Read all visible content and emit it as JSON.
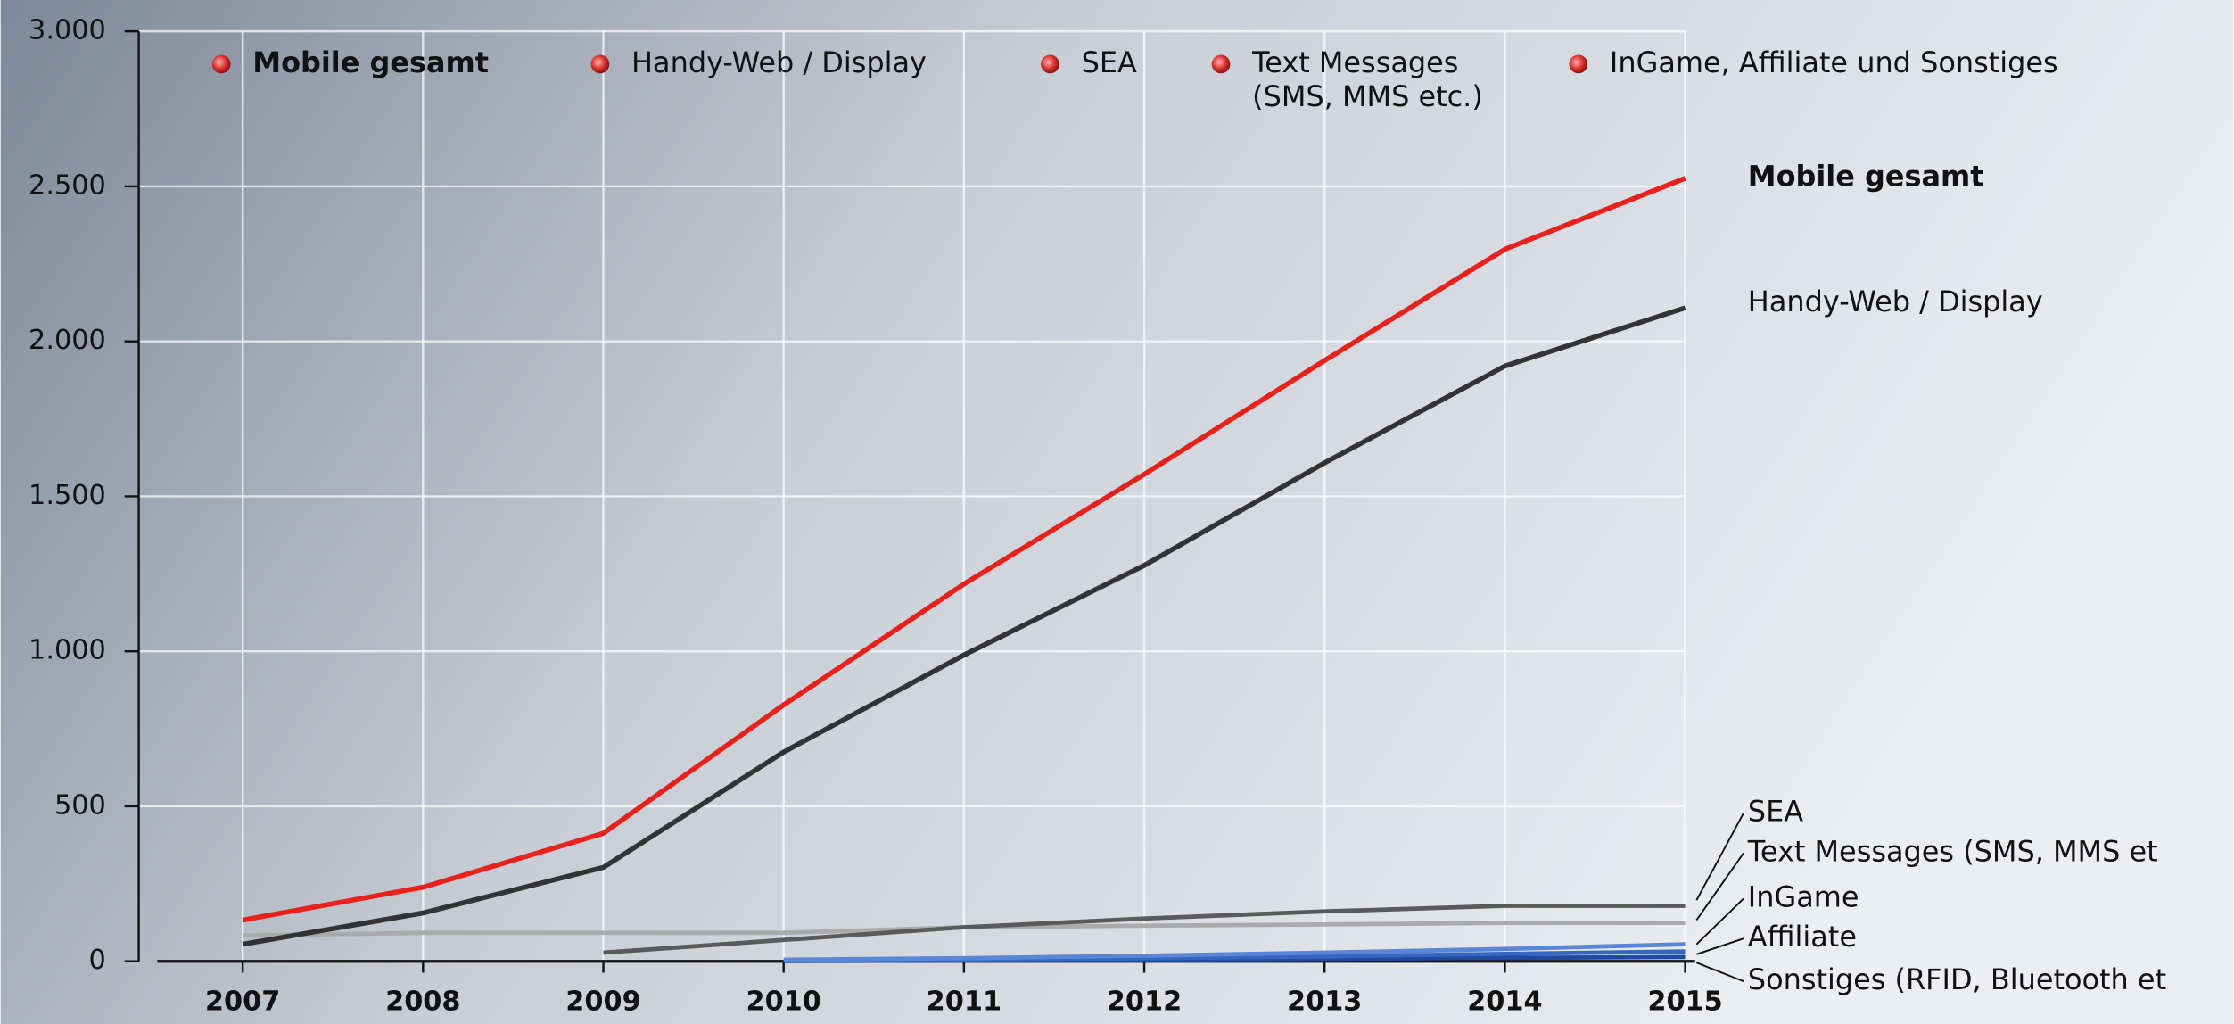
{
  "chart_data": {
    "type": "line",
    "categories": [
      "2007",
      "2008",
      "2009",
      "2010",
      "2011",
      "2012",
      "2013",
      "2014",
      "2015"
    ],
    "ylim": [
      0,
      3000
    ],
    "yticks": [
      0,
      500,
      {
        "value": 1000,
        "label": "1.000"
      },
      {
        "value": 1500,
        "label": "1.500"
      },
      {
        "value": 2000,
        "label": "2.000"
      },
      {
        "value": 2500,
        "label": "2.500"
      },
      {
        "value": 3000,
        "label": "3.000"
      }
    ],
    "grid": true,
    "legend": [
      "Mobile gesamt",
      "Handy-Web / Display",
      "SEA",
      [
        "Text Messages",
        "(SMS, MMS etc.)"
      ],
      "InGame, Affiliate und Sonstiges"
    ],
    "series": [
      {
        "name": "Mobile gesamt",
        "color": "#e8211c",
        "values": [
          133,
          239,
          413,
          827,
          1217,
          1571,
          1938,
          2297,
          2526
        ]
      },
      {
        "name": "Handy-Web / Display",
        "color": "#333333",
        "values": [
          55,
          156,
          303,
          675,
          988,
          1277,
          1608,
          1920,
          2108
        ]
      },
      {
        "name": "SEA",
        "color": "#5a5a5a",
        "values": [
          null,
          null,
          28,
          69,
          110,
          138,
          161,
          179,
          179
        ]
      },
      {
        "name": "Text Messages (SMS, MMS et",
        "color": "#aaaaaa",
        "values": [
          83,
          92,
          92,
          92,
          110,
          115,
          119,
          124,
          124
        ]
      },
      {
        "name": "InGame",
        "color": "#5a86d6",
        "values": [
          null,
          null,
          null,
          5,
          10,
          18,
          28,
          40,
          55
        ]
      },
      {
        "name": "Affiliate",
        "color": "#3566c0",
        "values": [
          null,
          null,
          null,
          3,
          6,
          10,
          16,
          24,
          32
        ]
      },
      {
        "name": "Sonstiges (RFID, Bluetooth et",
        "color": "#1f4aa0",
        "values": [
          null,
          null,
          null,
          1,
          3,
          5,
          8,
          11,
          14
        ]
      }
    ]
  }
}
